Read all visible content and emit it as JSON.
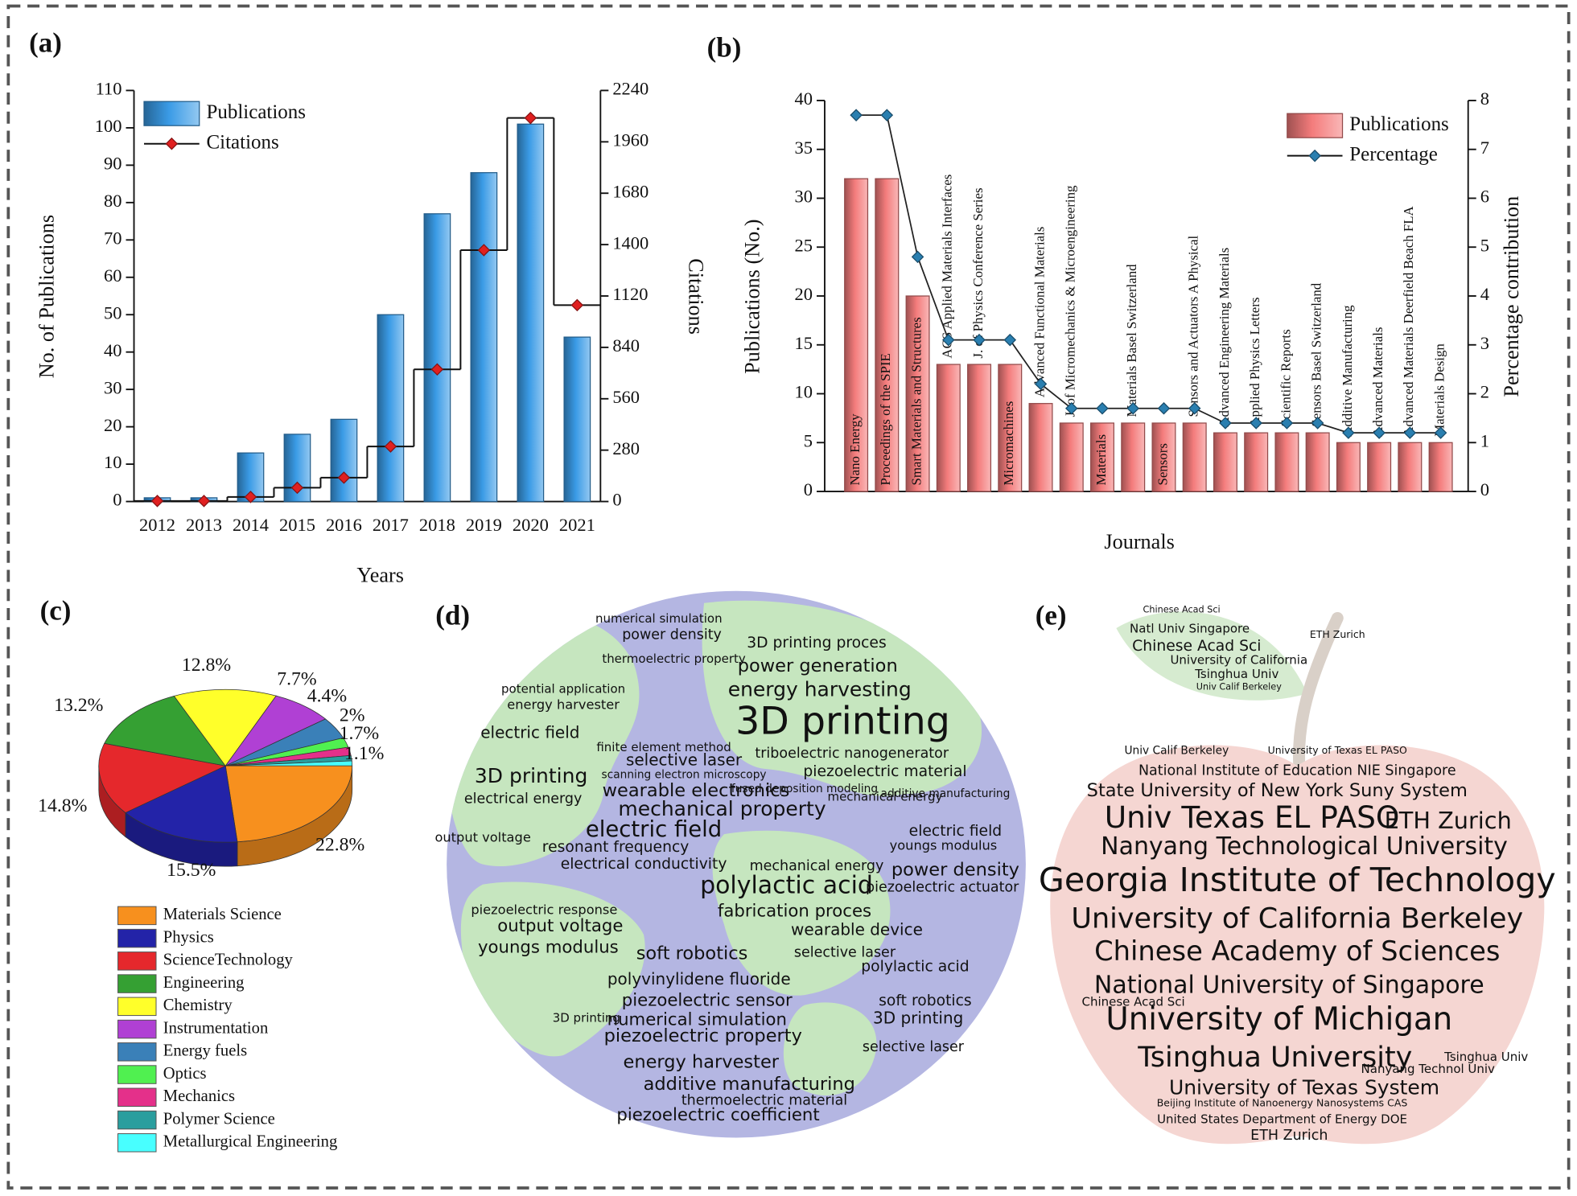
{
  "chart_data": [
    {
      "type": "bar",
      "label": "(a)",
      "x_label": "Years",
      "y_label": "No. of Publications",
      "y2_label": "Citations",
      "categories": [
        "2012",
        "2013",
        "2014",
        "2015",
        "2016",
        "2017",
        "2018",
        "2019",
        "2020",
        "2021"
      ],
      "series": [
        {
          "name": "Publications",
          "color": "#3a9be6",
          "values": [
            1,
            1,
            13,
            18,
            22,
            50,
            77,
            88,
            101,
            44
          ]
        },
        {
          "name": "Citations",
          "color": "#e02020",
          "axis": "y2",
          "style": "step",
          "values": [
            3,
            3,
            25,
            75,
            130,
            300,
            720,
            1370,
            2090,
            1070
          ]
        }
      ],
      "ylim": [
        0,
        110
      ],
      "yticks": [
        0,
        10,
        20,
        30,
        40,
        50,
        60,
        70,
        80,
        90,
        100,
        110
      ],
      "y2lim": [
        0,
        2240
      ],
      "y2ticks": [
        0,
        280,
        560,
        840,
        1120,
        1400,
        1680,
        1960,
        2240
      ]
    },
    {
      "type": "bar",
      "label": "(b)",
      "x_label": "Journals",
      "y_label": "Publications (No.)",
      "y2_label": "Percentage contribution",
      "categories": [
        "Nano Energy",
        "Proceedings of the SPIE",
        "Smart Materials and Structures",
        "ACS Applied Materials Interfaces",
        "J. of Physics Conference Series",
        "Micromachines",
        "Advanced Functional Materials",
        "J. of Micromechanics & Microengineering",
        "Materials",
        "Materials Basel Switzerland",
        "Sensors",
        "Sensors and Actuators A Physical",
        "Advanced Engineering Materials",
        "Applied Physics Letters",
        "Scientific Reports",
        "Sensors Basel Switzerland",
        "Additive Manufacturing",
        "Advanced Materials",
        "Advanced Materials Deerfield Beach FLA",
        "Materials Design"
      ],
      "series": [
        {
          "name": "Publications",
          "color": "#f47c7c",
          "values": [
            32,
            32,
            20,
            13,
            13,
            13,
            9,
            7,
            7,
            7,
            7,
            7,
            6,
            6,
            6,
            6,
            5,
            5,
            5,
            5
          ]
        },
        {
          "name": "Percentage",
          "color": "#2a7fb0",
          "axis": "y2",
          "style": "line",
          "values": [
            7.7,
            7.7,
            4.8,
            3.1,
            3.1,
            3.1,
            2.2,
            1.7,
            1.7,
            1.7,
            1.7,
            1.7,
            1.4,
            1.4,
            1.4,
            1.4,
            1.2,
            1.2,
            1.2,
            1.2
          ]
        }
      ],
      "ylim": [
        0,
        40
      ],
      "yticks": [
        0,
        5,
        10,
        15,
        20,
        25,
        30,
        35,
        40
      ],
      "y2lim": [
        0,
        8
      ],
      "y2ticks": [
        0,
        1,
        2,
        3,
        4,
        5,
        6,
        7,
        8
      ]
    },
    {
      "type": "pie",
      "label": "(c)",
      "categories": [
        "Materials Science",
        "Physics",
        "ScienceTechnology",
        "Engineering",
        "Chemistry",
        "Instrumentation",
        "Energy fuels",
        "Optics",
        "Mechanics",
        "Polymer Science",
        "Metallurgical Engineering"
      ],
      "values": [
        22.8,
        15.5,
        14.8,
        13.2,
        12.8,
        7.7,
        4.4,
        2,
        1.7,
        1.1,
        1
      ],
      "value_labels": [
        "22.8%",
        "15.5%",
        "14.8%",
        "13.2%",
        "12.8%",
        "7.7%",
        "4.4%",
        "2%",
        "1.7%",
        "1.1%",
        null
      ],
      "colors": [
        "#f7901e",
        "#2323a8",
        "#e5282c",
        "#35a033",
        "#ffff2a",
        "#b040d4",
        "#3a80b8",
        "#50f050",
        "#e4308a",
        "#2a9e9e",
        "#48ffff"
      ]
    },
    {
      "type": "wordcloud",
      "label": "(d)",
      "words": [
        "3D printing",
        "energy harvesting",
        "power generation",
        "3D printing proces",
        "power density",
        "triboelectric nanogenerator",
        "piezoelectric material",
        "selective laser",
        "wearable electronics",
        "mechanical property",
        "electric field",
        "resonant frequency",
        "electrical conductivity",
        "3D printing",
        "electric field",
        "electrical energy",
        "output voltage",
        "energy harvester",
        "potential application",
        "polylactic acid",
        "fabrication proces",
        "mechanical energy",
        "output voltage",
        "piezoelectric response",
        "youngs modulus",
        "soft robotics",
        "polyvinylidene fluoride",
        "piezoelectric sensor",
        "numerical simulation",
        "piezoelectric property",
        "energy harvester",
        "additive manufacturing",
        "thermoelectric material",
        "piezoelectric coefficient",
        "wearable device",
        "selective laser",
        "polylactic acid",
        "soft robotics",
        "3D printing",
        "selective laser",
        "power density",
        "piezoelectric actuator",
        "electric field",
        "youngs modulus",
        "3D printing",
        "finite element method",
        "scanning electron microscopy",
        "mechanical energy",
        "additive manufacturing",
        "fused deposition modeling",
        "thermoelectric property",
        "numerical simulation"
      ]
    },
    {
      "type": "wordcloud",
      "label": "(e)",
      "words": [
        "Georgia Institute of Technology",
        "University of California Berkeley",
        "Chinese Academy of Sciences",
        "National University of Singapore",
        "University of Michigan",
        "Tsinghua University",
        "University of Texas System",
        "Univ Texas EL PASO",
        "ETH Zurich",
        "Nanyang Technological University",
        "State University of New York Suny System",
        "National Institute of Education NIE Singapore",
        "Univ Calif Berkeley",
        "University of Texas EL PASO",
        "Nanyang Technol Univ",
        "United States Department of Energy DOE",
        "ETH Zurich",
        "Beijing Institute of Nanoenergy Nanosystems CAS",
        "Tsinghua Univ",
        "Chinese Acad Sci",
        "Chinese Acad Sci",
        "Natl Univ Singapore",
        "University of California",
        "Tsinghua Univ",
        "Univ Calif Berkeley",
        "ETH Zurich",
        "Chinese Acad Sci"
      ]
    }
  ]
}
